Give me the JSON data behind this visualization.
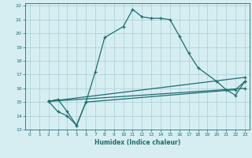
{
  "xlabel": "Humidex (Indice chaleur)",
  "xlim": [
    -0.5,
    23.5
  ],
  "ylim": [
    13,
    22.2
  ],
  "xticks": [
    0,
    1,
    2,
    3,
    4,
    5,
    6,
    7,
    8,
    9,
    10,
    11,
    12,
    13,
    14,
    15,
    16,
    17,
    18,
    19,
    20,
    21,
    22,
    23
  ],
  "yticks": [
    13,
    14,
    15,
    16,
    17,
    18,
    19,
    20,
    21,
    22
  ],
  "bg_color": "#d6eef2",
  "grid_color": "#a8cdd4",
  "line_color": "#1e6e6e",
  "lines": [
    {
      "x": [
        2,
        3,
        4,
        5,
        6,
        7,
        8,
        10,
        11,
        12,
        13,
        14,
        15,
        16,
        17,
        18,
        20,
        21,
        22,
        23
      ],
      "y": [
        15.05,
        15.2,
        14.3,
        13.3,
        15.0,
        17.2,
        19.7,
        20.5,
        21.75,
        21.2,
        21.1,
        21.1,
        21.0,
        19.8,
        18.55,
        17.5,
        16.5,
        15.9,
        15.5,
        16.5
      ]
    },
    {
      "x": [
        2,
        3,
        4,
        5,
        6,
        22,
        23
      ],
      "y": [
        15.05,
        14.3,
        14.0,
        13.3,
        15.0,
        15.9,
        16.5
      ]
    },
    {
      "x": [
        2,
        23
      ],
      "y": [
        15.05,
        16.0
      ]
    },
    {
      "x": [
        2,
        23
      ],
      "y": [
        15.05,
        16.8
      ]
    }
  ]
}
